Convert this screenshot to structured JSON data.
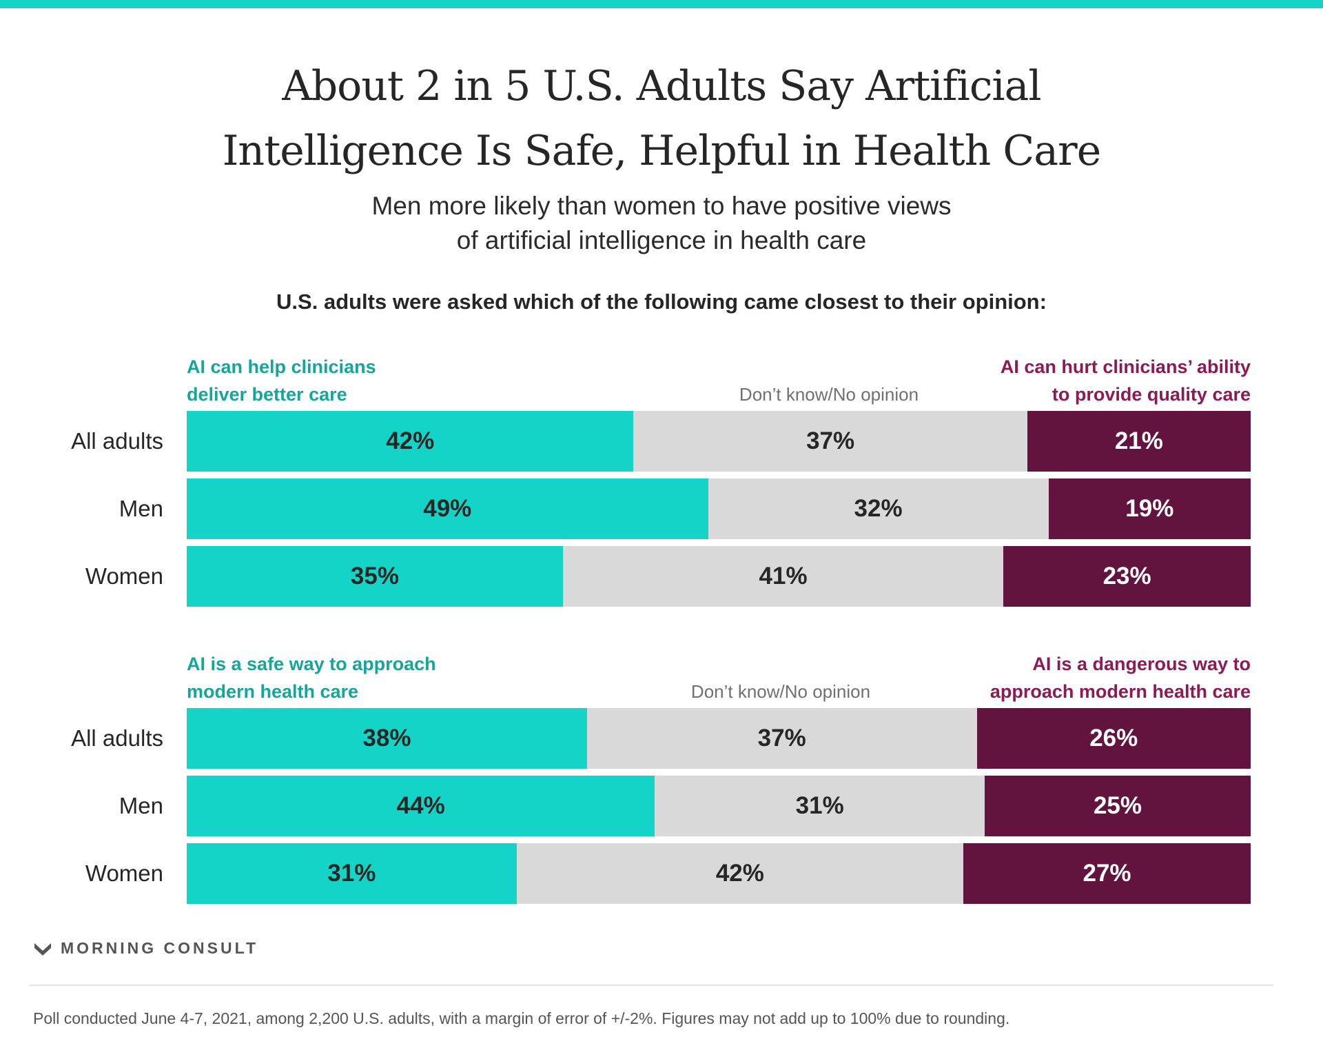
{
  "header": {
    "title_line1": "About 2 in 5 U.S. Adults Say Artificial",
    "title_line2": "Intelligence Is Safe, Helpful in Health Care",
    "subtitle_line1": "Men more likely than women to have positive views",
    "subtitle_line2": "of artificial intelligence in health care",
    "question": "U.S. adults were asked which of the following came closest to their opinion:"
  },
  "colors": {
    "accent_bar": "#14d3c7",
    "positive": "#14d3c7",
    "neutral": "#d9d9d9",
    "negative": "#63143e",
    "positive_text": "#14a69b",
    "negative_text": "#8c1a55"
  },
  "chart_data": [
    {
      "type": "bar",
      "stacked": true,
      "orientation": "horizontal",
      "categories": [
        "All adults",
        "Men",
        "Women"
      ],
      "legend": {
        "positive_line1": "AI can help clinicians",
        "positive_line2": "deliver better care",
        "neutral": "Don’t know/No opinion",
        "negative_line1": "AI can hurt clinicians’ ability",
        "negative_line2": "to provide quality care"
      },
      "series": [
        {
          "name": "AI can help clinicians deliver better care",
          "values": [
            42,
            49,
            35
          ]
        },
        {
          "name": "Don’t know/No opinion",
          "values": [
            37,
            32,
            41
          ]
        },
        {
          "name": "AI can hurt clinicians’ ability to provide quality care",
          "values": [
            21,
            19,
            23
          ]
        }
      ],
      "value_suffix": "%"
    },
    {
      "type": "bar",
      "stacked": true,
      "orientation": "horizontal",
      "categories": [
        "All adults",
        "Men",
        "Women"
      ],
      "legend": {
        "positive_line1": "AI is a safe way to approach",
        "positive_line2": "modern health care",
        "neutral": "Don’t know/No opinion",
        "negative_line1": "AI is a dangerous way to",
        "negative_line2": "approach modern health care"
      },
      "series": [
        {
          "name": "AI is a safe way to approach modern health care",
          "values": [
            38,
            44,
            31
          ]
        },
        {
          "name": "Don’t know/No opinion",
          "values": [
            37,
            31,
            42
          ]
        },
        {
          "name": "AI is a dangerous way to approach modern health care",
          "values": [
            26,
            25,
            27
          ]
        }
      ],
      "value_suffix": "%"
    }
  ],
  "footer": {
    "brand": "MORNING CONSULT",
    "brand_icon": "morning-consult-logo-icon",
    "note": "Poll conducted June 4-7, 2021, among 2,200 U.S. adults, with a margin of error of +/-2%. Figures may not add up to 100% due to rounding."
  }
}
